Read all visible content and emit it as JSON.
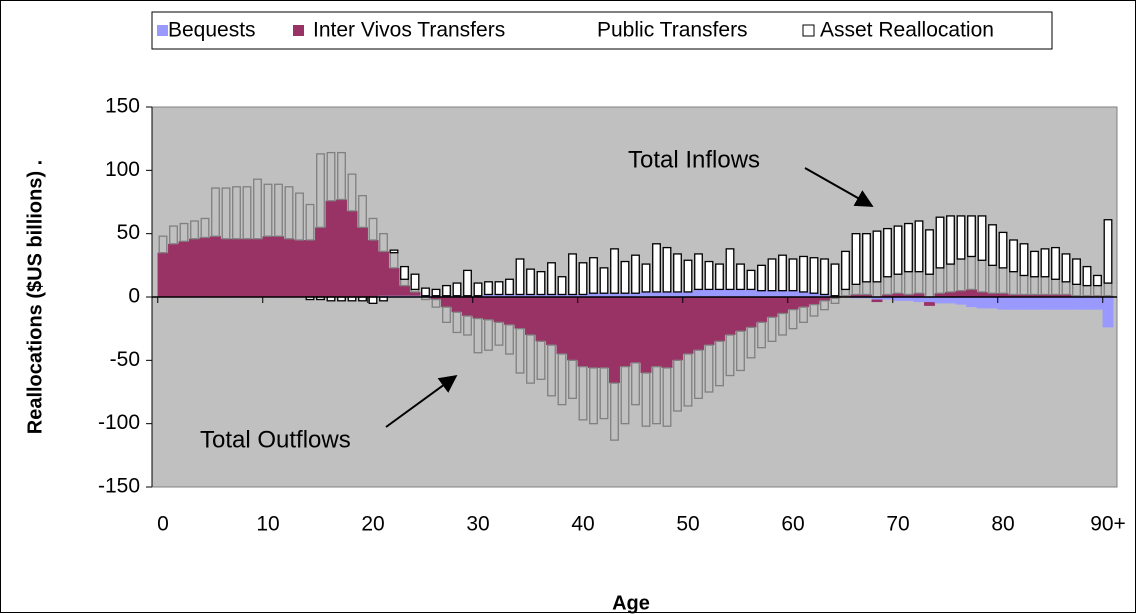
{
  "chart_data": {
    "type": "stacked",
    "x_label": "Age",
    "y_label": "Reallocations ($US billions)       .",
    "annotations": [
      "Total Inflows",
      "Total Outflows"
    ],
    "categories": [
      "0",
      null,
      null,
      null,
      null,
      null,
      null,
      null,
      null,
      null,
      "10",
      null,
      null,
      null,
      null,
      null,
      null,
      null,
      null,
      null,
      "20",
      null,
      null,
      null,
      null,
      null,
      null,
      null,
      null,
      null,
      "30",
      null,
      null,
      null,
      null,
      null,
      null,
      null,
      null,
      null,
      "40",
      null,
      null,
      null,
      null,
      null,
      null,
      null,
      null,
      null,
      "50",
      null,
      null,
      null,
      null,
      null,
      null,
      null,
      null,
      null,
      "60",
      null,
      null,
      null,
      null,
      null,
      null,
      null,
      null,
      null,
      "70",
      null,
      null,
      null,
      null,
      null,
      null,
      null,
      null,
      null,
      "80",
      null,
      null,
      null,
      null,
      null,
      null,
      null,
      null,
      null,
      "90+"
    ],
    "ylim": [
      -150,
      150
    ],
    "yticks": [
      -150,
      -100,
      -50,
      0,
      50,
      100,
      150
    ],
    "plot_background": "#c0c0c0",
    "series": [
      {
        "name": "Bequests",
        "color": "#9999ff",
        "kind": "area",
        "values": [
          0,
          0,
          0,
          0,
          0,
          0,
          0,
          0,
          0,
          0,
          0,
          0,
          0,
          0,
          0,
          0,
          0,
          0,
          0,
          0,
          0,
          1,
          1,
          1,
          1,
          1,
          1,
          1,
          1,
          1,
          1,
          2,
          2,
          2,
          2,
          2,
          2,
          2,
          2,
          2,
          2,
          3,
          3,
          3,
          3,
          3,
          4,
          4,
          4,
          4,
          4,
          6,
          6,
          6,
          6,
          6,
          6,
          5,
          5,
          5,
          5,
          4,
          3,
          2,
          1,
          0,
          -1,
          -1,
          -2,
          -2,
          -3,
          -3,
          -4,
          -4,
          -5,
          -5,
          -6,
          -8,
          -9,
          -9,
          -10,
          -10,
          -10,
          -10,
          -10,
          -10,
          -10,
          -10,
          -10,
          -10,
          -24
        ]
      },
      {
        "name": "Inter Vivos Transfers",
        "color": "#993366",
        "kind": "area",
        "values": [
          35,
          42,
          44,
          46,
          47,
          48,
          46,
          46,
          46,
          46,
          48,
          48,
          46,
          45,
          45,
          55,
          76,
          77,
          68,
          55,
          45,
          35,
          22,
          8,
          3,
          0,
          -2,
          -8,
          -12,
          -15,
          -17,
          -18,
          -20,
          -22,
          -25,
          -30,
          -35,
          -38,
          -45,
          -50,
          -55,
          -56,
          -56,
          -68,
          -55,
          -52,
          -60,
          -55,
          -56,
          -50,
          -45,
          -42,
          -38,
          -35,
          -30,
          -27,
          -24,
          -20,
          -16,
          -13,
          -10,
          -8,
          -6,
          -3,
          -1,
          1,
          2,
          2,
          -2,
          2,
          3,
          2,
          3,
          -3,
          3,
          4,
          5,
          6,
          4,
          3,
          3,
          2,
          2,
          2,
          2,
          2,
          2,
          1,
          1,
          1,
          1
        ]
      },
      {
        "name": "Public Transfers",
        "color": "#c0c0c0",
        "stroke": "#808080",
        "kind": "bar",
        "values": [
          13,
          14,
          14,
          14,
          15,
          38,
          40,
          41,
          41,
          47,
          41,
          41,
          41,
          37,
          28,
          58,
          38,
          37,
          29,
          25,
          17,
          14,
          12,
          5,
          2,
          -2,
          -6,
          -12,
          -16,
          -15,
          -27,
          -24,
          -18,
          -23,
          -35,
          -38,
          -30,
          -40,
          -40,
          -30,
          -42,
          -44,
          -40,
          -45,
          -45,
          -33,
          -42,
          -45,
          -46,
          -40,
          -41,
          -38,
          -37,
          -35,
          -32,
          -31,
          -24,
          -20,
          -19,
          -17,
          -15,
          -12,
          -9,
          -7,
          -4,
          5,
          8,
          10,
          12,
          14,
          15,
          18,
          17,
          18,
          20,
          22,
          25,
          26,
          25,
          22,
          20,
          18,
          15,
          14,
          14,
          12,
          10,
          9,
          8,
          8,
          10
        ]
      },
      {
        "name": "Asset Reallocation",
        "color": "#ffffff",
        "stroke": "#000000",
        "kind": "bar",
        "values": [
          0,
          0,
          0,
          0,
          0,
          0,
          0,
          0,
          0,
          0,
          0,
          0,
          0,
          0,
          -2,
          -2,
          -3,
          -3,
          -3,
          -3,
          -5,
          -3,
          2,
          10,
          12,
          6,
          5,
          8,
          10,
          20,
          10,
          10,
          10,
          12,
          28,
          20,
          18,
          25,
          14,
          32,
          25,
          28,
          20,
          35,
          25,
          30,
          22,
          38,
          35,
          30,
          25,
          28,
          22,
          20,
          32,
          20,
          15,
          20,
          25,
          28,
          25,
          28,
          28,
          28,
          25,
          30,
          40,
          38,
          40,
          38,
          38,
          38,
          40,
          35,
          40,
          38,
          34,
          32,
          35,
          32,
          28,
          25,
          25,
          20,
          22,
          25,
          22,
          20,
          15,
          8,
          50
        ]
      }
    ]
  }
}
